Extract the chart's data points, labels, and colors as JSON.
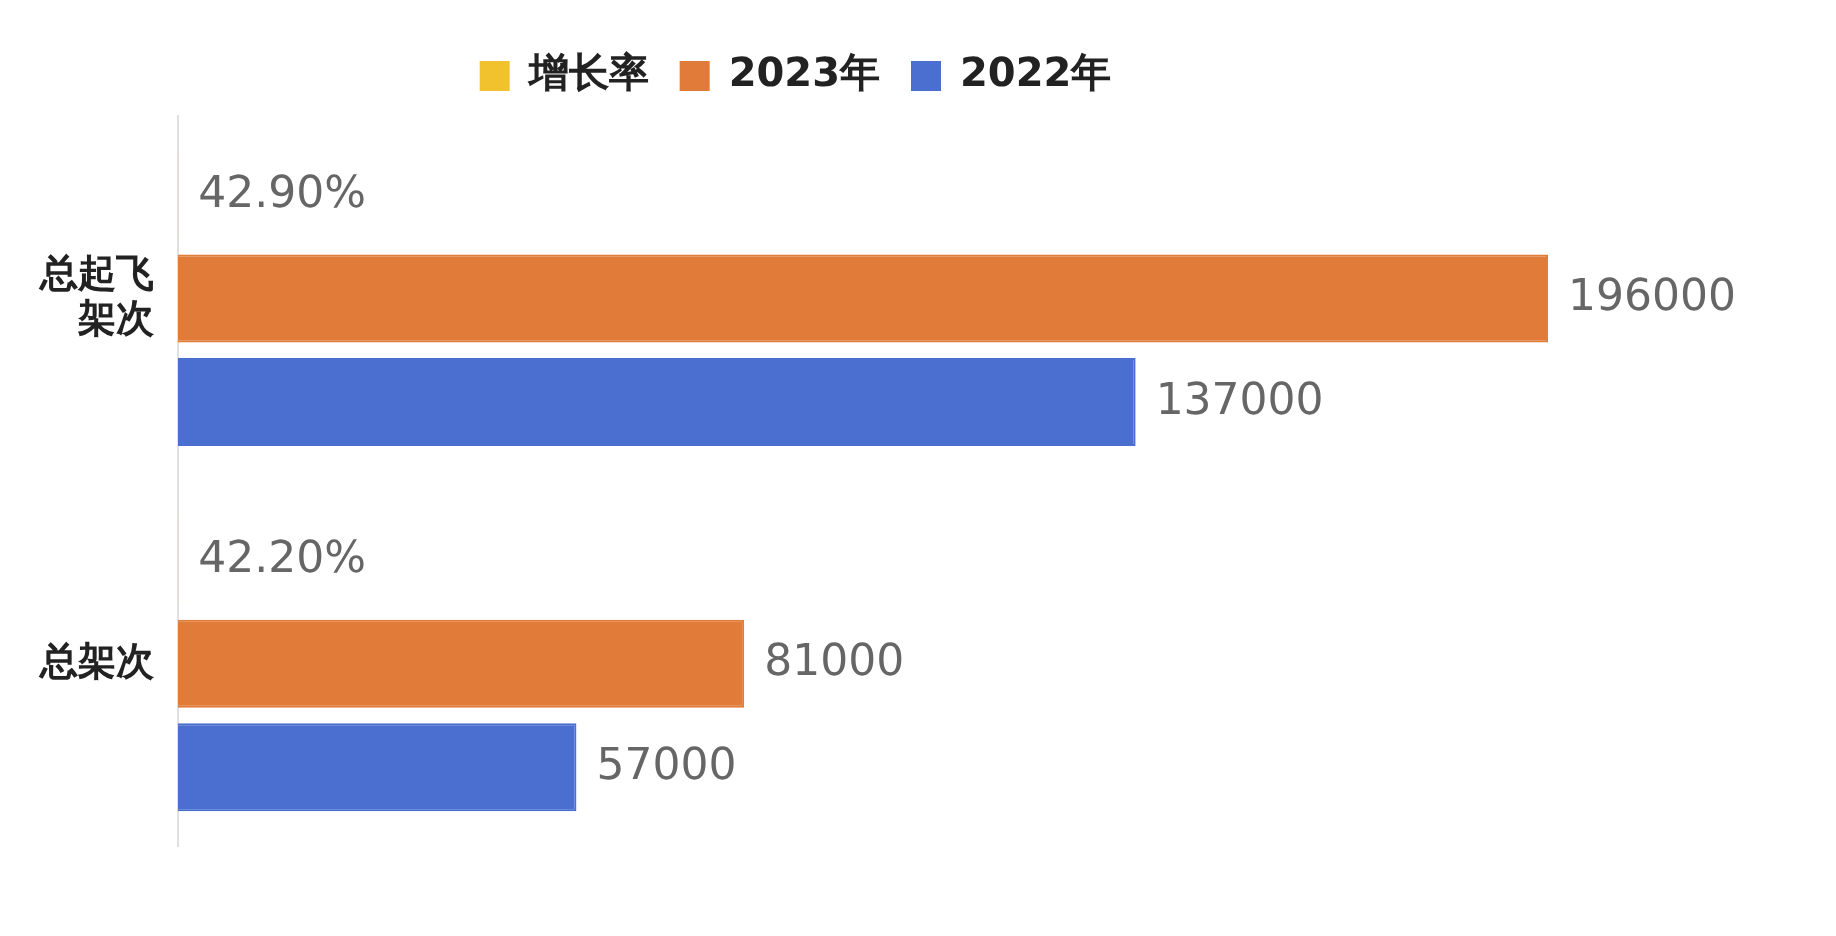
{
  "chart_data": {
    "type": "bar",
    "orientation": "horizontal",
    "categories": [
      "总起飞架次",
      "总架次"
    ],
    "series": [
      {
        "name": "增长率",
        "color": "#f2c12e",
        "values": [
          42.9,
          42.2
        ],
        "value_labels": [
          "42.90%",
          "42.20%"
        ]
      },
      {
        "name": "2023年",
        "color": "#e07b39",
        "values": [
          196000,
          81000
        ],
        "value_labels": [
          "196000",
          "81000"
        ]
      },
      {
        "name": "2022年",
        "color": "#4a6fd0",
        "values": [
          137000,
          57000
        ],
        "value_labels": [
          "137000",
          "57000"
        ]
      }
    ],
    "legend": "top",
    "grid": false
  }
}
